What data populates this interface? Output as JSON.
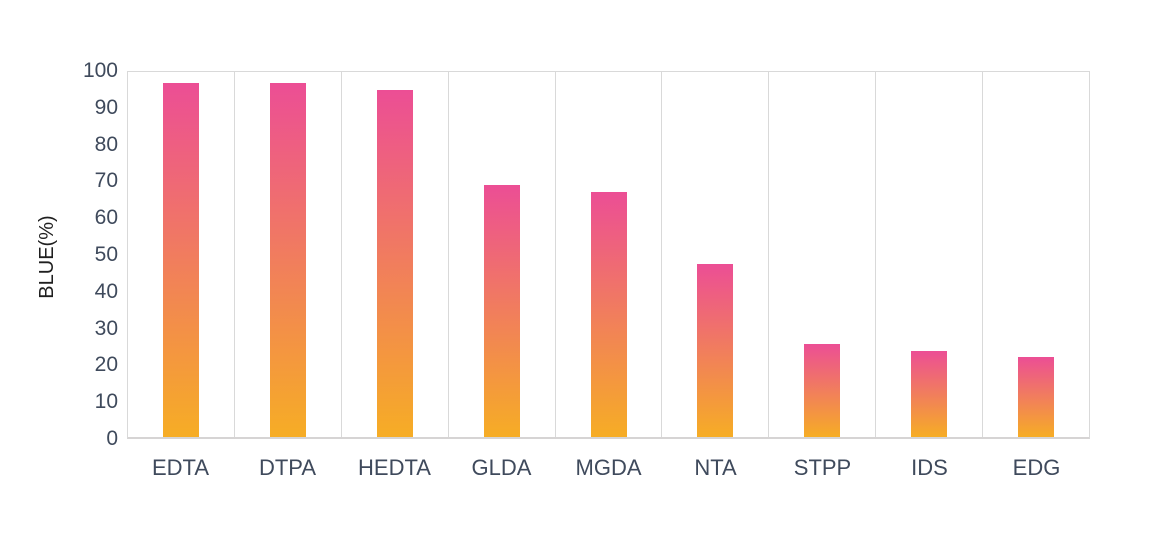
{
  "chart_data": {
    "type": "bar",
    "categories": [
      "EDTA",
      "DTPA",
      "HEDTA",
      "GLDA",
      "MGDA",
      "NTA",
      "STPP",
      "IDS",
      "EDG"
    ],
    "values": [
      97,
      97,
      95,
      69,
      67,
      47.5,
      25.5,
      23.5,
      22
    ],
    "title": "",
    "xlabel": "",
    "ylabel": "BLUE(%)",
    "ylim": [
      0,
      100
    ],
    "yticks": [
      0,
      10,
      20,
      30,
      40,
      50,
      60,
      70,
      80,
      90,
      100
    ],
    "grid": "vertical-column-separators-only",
    "legend": "none",
    "colors": {
      "bar_gradient_top": "#EC4E95",
      "bar_gradient_bottom": "#F6AD25",
      "gridline": "#D9D9D9",
      "axis_bottom_line": "#D6D4D4",
      "tick_label_text": "#3F4A5C",
      "axis_title_text": "#1F1F1F",
      "background": "#FFFFFF"
    }
  }
}
